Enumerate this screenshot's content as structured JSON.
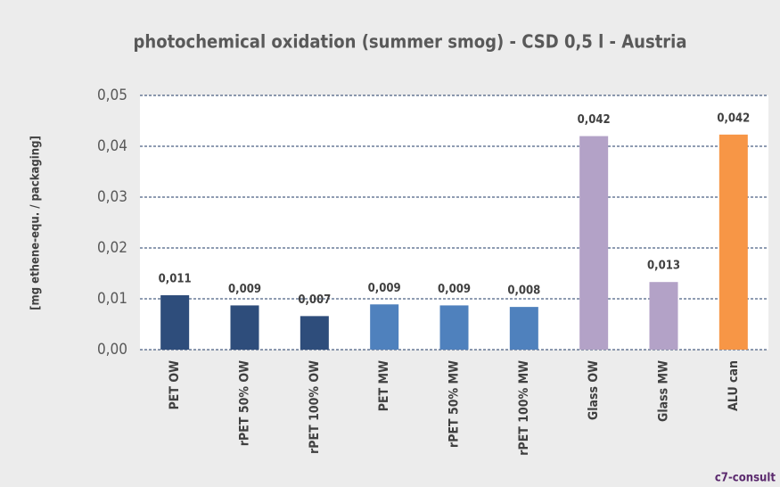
{
  "chart_data": {
    "type": "bar",
    "title": "photochemical oxidation (summer smog) - CSD 0,5 l - Austria",
    "y_label": "[mg ethene-equ. / packaging]",
    "categories": [
      "PET OW",
      "rPET 50% OW",
      "rPET 100% OW",
      "PET MW",
      "rPET 50% MW",
      "rPET 100% MW",
      "Glass OW",
      "Glass MW",
      "ALU can"
    ],
    "values": [
      0.0107,
      0.0087,
      0.0066,
      0.0089,
      0.0087,
      0.0084,
      0.042,
      0.0133,
      0.0423
    ],
    "value_labels": [
      "0,011",
      "0,009",
      "0,007",
      "0,009",
      "0,009",
      "0,008",
      "0,042",
      "0,013",
      "0,042"
    ],
    "colors": [
      "#2e4d7b",
      "#2e4d7b",
      "#2e4d7b",
      "#4f81bd",
      "#4f81bd",
      "#4f81bd",
      "#b3a2c7",
      "#b3a2c7",
      "#f79646"
    ],
    "ylim": [
      0,
      0.05
    ],
    "yticks": [
      {
        "value": 0,
        "label": "0,00"
      },
      {
        "value": 0.01,
        "label": "0,01"
      },
      {
        "value": 0.02,
        "label": "0,02"
      },
      {
        "value": 0.03,
        "label": "0,03"
      },
      {
        "value": 0.04,
        "label": "0,04"
      },
      {
        "value": 0.05,
        "label": "0,05"
      }
    ],
    "grid": true,
    "footer": "c7-consult"
  }
}
